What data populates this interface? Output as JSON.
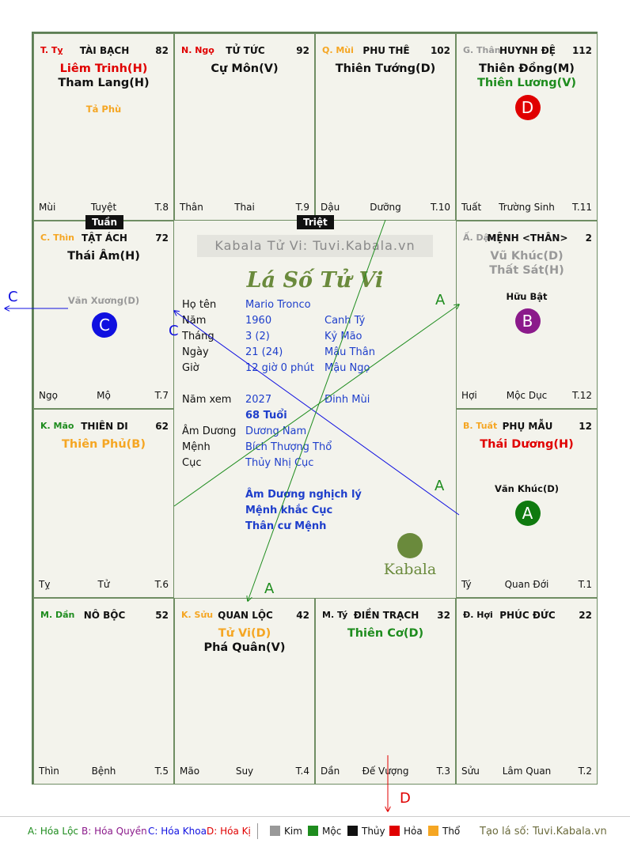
{
  "cells": [
    {
      "branch": "T. Tỵ",
      "branch_color": "#e00000",
      "palace": "TÀI BẠCH",
      "num": "82",
      "stars": [
        {
          "t": "Liêm Trinh(H)",
          "c": "#e00000"
        },
        {
          "t": "Tham Lang(H)",
          "c": "#111111"
        }
      ],
      "minor": [
        {
          "t": "Tả Phù",
          "c": "#f5a623"
        }
      ],
      "footer": [
        "Mùi",
        "Tuyệt",
        "T.8"
      ]
    },
    {
      "branch": "N. Ngọ",
      "branch_color": "#e00000",
      "palace": "TỬ TỨC",
      "num": "92",
      "stars": [
        {
          "t": "Cự Môn(V)",
          "c": "#111111"
        }
      ],
      "minor": [],
      "footer": [
        "Thân",
        "Thai",
        "T.9"
      ]
    },
    {
      "branch": "Q. Mùi",
      "branch_color": "#f5a623",
      "palace": "PHU THÊ",
      "num": "102",
      "stars": [
        {
          "t": "Thiên Tướng(D)",
          "c": "#111111"
        }
      ],
      "minor": [],
      "footer": [
        "Dậu",
        "Dưỡng",
        "T.10"
      ]
    },
    {
      "branch": "G. Thân",
      "branch_color": "#999999",
      "palace": "HUYNH ĐỆ",
      "num": "112",
      "stars": [
        {
          "t": "Thiên Đồng(M)",
          "c": "#111111"
        },
        {
          "t": "Thiên Lương(V)",
          "c": "#1e8c1e"
        }
      ],
      "minor": [],
      "badge": {
        "t": "D",
        "c": "#e00000"
      },
      "footer": [
        "Tuất",
        "Trường Sinh",
        "T.11"
      ]
    },
    {
      "branch": "C. Thìn",
      "branch_color": "#f5a623",
      "palace": "TẬT ÁCH",
      "num": "72",
      "stars": [
        {
          "t": "Thái Âm(H)",
          "c": "#111111"
        }
      ],
      "minor": [
        {
          "t": "Văn Xương(D)",
          "c": "#999999"
        }
      ],
      "badge": {
        "t": "C",
        "c": "#1010e0"
      },
      "footer": [
        "Ngọ",
        "Mộ",
        "T.7"
      ]
    },
    {
      "branch": "Ấ. Dậu",
      "branch_color": "#999999",
      "palace": "MỆNH <THÂN>",
      "num": "2",
      "stars": [
        {
          "t": "Vũ Khúc(D)",
          "c": "#999999"
        },
        {
          "t": "Thất Sát(H)",
          "c": "#999999"
        }
      ],
      "minor": [
        {
          "t": "Hữu Bật",
          "c": "#111111"
        }
      ],
      "badge": {
        "t": "B",
        "c": "#8b1a8b"
      },
      "footer": [
        "Hợi",
        "Mộc Dục",
        "T.12"
      ]
    },
    {
      "branch": "K. Mão",
      "branch_color": "#1e8c1e",
      "palace": "THIÊN DI",
      "num": "62",
      "stars": [
        {
          "t": "Thiên Phủ(B)",
          "c": "#f5a623"
        }
      ],
      "minor": [],
      "footer": [
        "Tỵ",
        "Tử",
        "T.6"
      ]
    },
    {
      "branch": "B. Tuất",
      "branch_color": "#f5a623",
      "palace": "PHỤ MẪU",
      "num": "12",
      "stars": [
        {
          "t": "Thái Dương(H)",
          "c": "#e00000"
        }
      ],
      "minor": [
        {
          "t": "Văn Khúc(D)",
          "c": "#111111"
        }
      ],
      "badge": {
        "t": "A",
        "c": "#0f7a0f"
      },
      "footer": [
        "Tý",
        "Quan Đới",
        "T.1"
      ]
    },
    {
      "branch": "M. Dần",
      "branch_color": "#1e8c1e",
      "palace": "NÔ BỘC",
      "num": "52",
      "stars": [],
      "minor": [],
      "footer": [
        "Thìn",
        "Bệnh",
        "T.5"
      ]
    },
    {
      "branch": "K. Sửu",
      "branch_color": "#f5a623",
      "palace": "QUAN LỘC",
      "num": "42",
      "stars": [
        {
          "t": "Tử Vi(D)",
          "c": "#f5a623"
        },
        {
          "t": "Phá Quân(V)",
          "c": "#111111"
        }
      ],
      "minor": [],
      "footer": [
        "Mão",
        "Suy",
        "T.4"
      ]
    },
    {
      "branch": "M. Tý",
      "branch_color": "#111111",
      "palace": "ĐIỀN TRẠCH",
      "num": "32",
      "stars": [
        {
          "t": "Thiên Cơ(D)",
          "c": "#1e8c1e"
        }
      ],
      "minor": [],
      "footer": [
        "Dần",
        "Đế Vượng",
        "T.3"
      ]
    },
    {
      "branch": "Đ. Hợi",
      "branch_color": "#111111",
      "palace": "PHÚC ĐỨC",
      "num": "22",
      "stars": [],
      "minor": [],
      "footer": [
        "Sửu",
        "Lâm Quan",
        "T.2"
      ]
    }
  ],
  "tags": {
    "tuan": "Tuần",
    "triet": "Triệt"
  },
  "center": {
    "watermark": "Kabala Tử Vi: Tuvi.Kabala.vn",
    "title": "Lá Số Tử Vi",
    "rows": [
      {
        "k": "Họ tên",
        "v1": "Mario Tronco",
        "v2": ""
      },
      {
        "k": "Năm",
        "v1": "1960",
        "v2": "Canh Tý"
      },
      {
        "k": "Tháng",
        "v1": "3  (2)",
        "v2": "Kỷ Mão"
      },
      {
        "k": "Ngày",
        "v1": "21  (24)",
        "v2": "Mậu Thân"
      },
      {
        "k": "Giờ",
        "v1": "12 giờ 0 phút",
        "v2": "Mậu Ngọ"
      }
    ],
    "rows2": [
      {
        "k": "Năm xem",
        "v1": "2027",
        "v2": "Đinh Mùi"
      },
      {
        "k": "",
        "v1": "68 Tuổi",
        "v2": ""
      },
      {
        "k": "Âm Dương",
        "v1": "Dương Nam",
        "v2": ""
      },
      {
        "k": "Mệnh",
        "v1": "Bích Thượng Thổ",
        "v2": ""
      },
      {
        "k": "Cục",
        "v1": "Thủy Nhị Cục",
        "v2": ""
      }
    ],
    "notes": [
      "Âm Dương nghịch lý",
      "Mệnh khắc Cục",
      "Thân cư Mệnh"
    ],
    "logo_text": "Kabala"
  },
  "arrows": {
    "c1": "C",
    "c2": "C",
    "a1": "A",
    "a2": "A",
    "a3": "A",
    "d": "D"
  },
  "legend": {
    "a": "A: Hóa Lộc",
    "b": "B: Hóa Quyền",
    "c": "C: Hóa Khoa",
    "d": "D: Hóa Kị",
    "kim": "Kim",
    "moc": "Mộc",
    "thuy": "Thủy",
    "hoa": "Hỏa",
    "tho": "Thổ",
    "site": "Tạo lá số: Tuvi.Kabala.vn",
    "colors": {
      "a": "#1e8c1e",
      "b": "#8b1a8b",
      "c": "#1010e0",
      "d": "#e00000",
      "kim": "#999999",
      "moc": "#1e8c1e",
      "thuy": "#111111",
      "hoa": "#e00000",
      "tho": "#f5a623"
    }
  }
}
